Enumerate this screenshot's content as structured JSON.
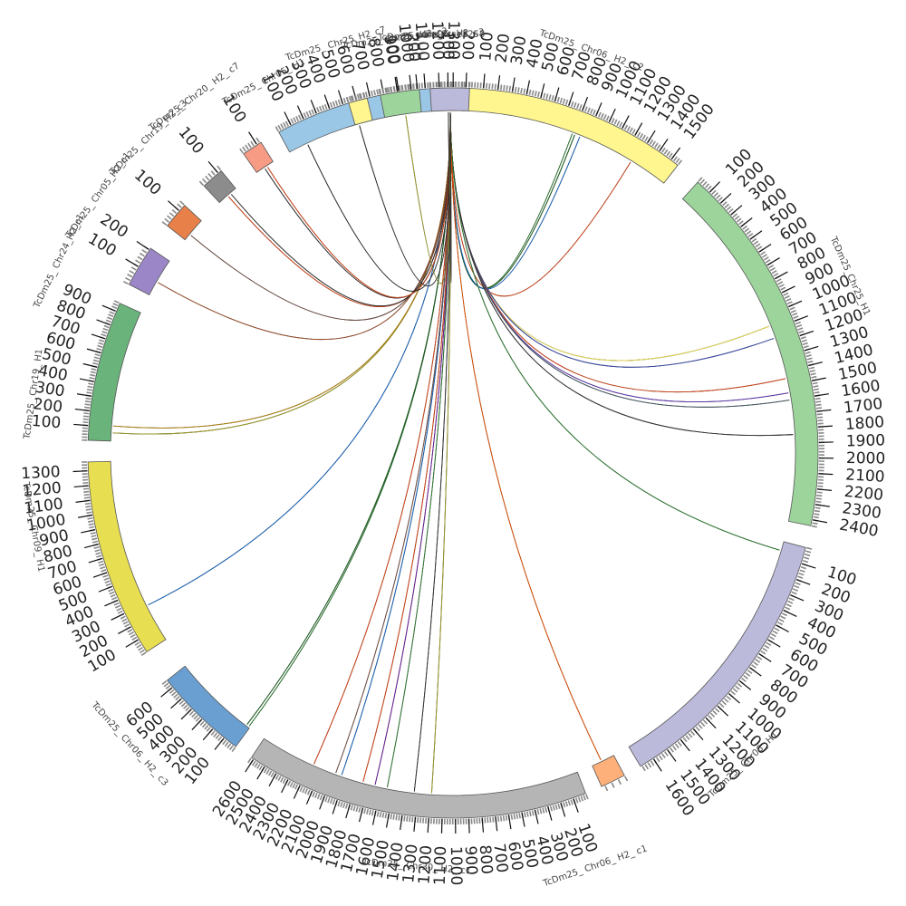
{
  "chart_data": {
    "type": "chord",
    "unit_label": "",
    "hub": {
      "name": "gene_Tcce2258",
      "length": 1
    },
    "chromosomes": [
      {
        "name": "TcDm25_Chr06_H2_c2",
        "length": 1560,
        "color": "#fff68f"
      },
      {
        "name": "TcDm25_Chr25_H1",
        "length": 2440,
        "color": "#9cd49b"
      },
      {
        "name": "TcDm25_Chr06_H1",
        "length": 1690,
        "color": "#bcbadb"
      },
      {
        "name": "TcDm25_Chr06_H2_c1",
        "length": 70,
        "color": "#fdb07a"
      },
      {
        "name": "TcDm25_Chr30_H2_c1",
        "length": 2620,
        "color": "#b5b5b5"
      },
      {
        "name": "TcDm25_Chr06_H2_c3",
        "length": 660,
        "color": "#6a9fd1"
      },
      {
        "name": "TcDm25_Chr09_H1",
        "length": 1360,
        "color": "#e8de52"
      },
      {
        "name": "TcDm25_Chr19_H1",
        "length": 960,
        "color": "#6ab37a"
      },
      {
        "name": "TcDm25_Chr24_H2_c1",
        "length": 210,
        "color": "#9b87c7"
      },
      {
        "name": "TcDm25_Chr05_H2_c1",
        "length": 140,
        "color": "#e8804a"
      },
      {
        "name": "TcDm25_Chr19_H2_c3",
        "length": 120,
        "color": "#8c8c8c"
      },
      {
        "name": "TcDm25_Chr20_H2_c7",
        "length": 130,
        "color": "#f79b85"
      },
      {
        "name": "TcDm25_Chr05_H1",
        "length": 1390,
        "color": "#9ac7e6"
      },
      {
        "name": "TcDm25_Chr25_H2_c7",
        "length": 90,
        "color": "#fff68f"
      },
      {
        "name": "TcDm25_Chr25_H2_c3",
        "length": 210,
        "color": "#9cd49b"
      },
      {
        "name": "TcDm25_Chr06_H2_c3b",
        "length": 220,
        "color": "#bcbadb"
      }
    ],
    "chromosome_labels": [
      "TcDm25_ Chr06_ H2_ c2",
      "TcDm25_Chr25_H1",
      "TcDm25_ Chr06_ H1",
      "TcDm25_ Chr06_ H2_ c1",
      "TcDm25_ Chr30_ H2_ c1",
      "TcDm25_ Chr06_ H2_ c3",
      "TcDm25_ Chr09_ H1",
      "TcDm25_ Chr19_ H1",
      "TcDm25_ Chr24_H2_c1",
      "TcDm25_ Chr05_H2_c1",
      "TcDm25_ Chr19_H2_c3",
      "TcDm25_ Chr20_ H2_ c7",
      "TcDm25_ Chr05_ H1",
      "TcDm25_ Chr25_H2_c7",
      "TcDm25_ Chr25_ H2_c3",
      "TcDm25_ Chr06_ H2_c3",
      "gene_Tcce2258"
    ],
    "links": [
      {
        "target": 0,
        "pos": 790,
        "color": "#2e7d32"
      },
      {
        "target": 0,
        "pos": 810,
        "color": "#1b5e20"
      },
      {
        "target": 0,
        "pos": 850,
        "color": "#1565c0"
      },
      {
        "target": 0,
        "pos": 1270,
        "color": "#d84315"
      },
      {
        "target": 1,
        "pos": 1070,
        "color": "#e8de52"
      },
      {
        "target": 1,
        "pos": 1160,
        "color": "#3949ab"
      },
      {
        "target": 1,
        "pos": 1450,
        "color": "#d84315"
      },
      {
        "target": 1,
        "pos": 1550,
        "color": "#5e35b1"
      },
      {
        "target": 1,
        "pos": 1600,
        "color": "#455a64"
      },
      {
        "target": 1,
        "pos": 1840,
        "color": "#333333"
      },
      {
        "target": 2,
        "pos": 60,
        "color": "#2e7d32"
      },
      {
        "target": 3,
        "pos": 40,
        "color": "#e65100"
      },
      {
        "target": 4,
        "pos": 1190,
        "color": "#9e9d24"
      },
      {
        "target": 4,
        "pos": 1330,
        "color": "#333333"
      },
      {
        "target": 4,
        "pos": 1550,
        "color": "#2e7d32"
      },
      {
        "target": 4,
        "pos": 1650,
        "color": "#6a1b9a"
      },
      {
        "target": 4,
        "pos": 1750,
        "color": "#d84315"
      },
      {
        "target": 4,
        "pos": 1930,
        "color": "#1565c0"
      },
      {
        "target": 4,
        "pos": 1980,
        "color": "#795548"
      },
      {
        "target": 4,
        "pos": 2170,
        "color": "#d84315"
      },
      {
        "target": 5,
        "pos": 10,
        "color": "#2e7d32"
      },
      {
        "target": 5,
        "pos": 30,
        "color": "#1b5e20"
      },
      {
        "target": 6,
        "pos": 280,
        "color": "#1565c0"
      },
      {
        "target": 7,
        "pos": 60,
        "color": "#9e9d24"
      },
      {
        "target": 7,
        "pos": 110,
        "color": "#b8860b"
      },
      {
        "target": 8,
        "pos": 80,
        "color": "#a0522d"
      },
      {
        "target": 9,
        "pos": 40,
        "color": "#6d4c41"
      },
      {
        "target": 10,
        "pos": 60,
        "color": "#d84315"
      },
      {
        "target": 10,
        "pos": 80,
        "color": "#333333"
      },
      {
        "target": 11,
        "pos": 60,
        "color": "#333333"
      },
      {
        "target": 11,
        "pos": 80,
        "color": "#d84315"
      },
      {
        "target": 12,
        "pos": 150,
        "color": "#333333"
      },
      {
        "target": 13,
        "pos": 20,
        "color": "#333333"
      },
      {
        "target": 14,
        "pos": 120,
        "color": "#9e9d24"
      },
      {
        "target": 15,
        "pos": 100,
        "color": "#333333"
      }
    ]
  }
}
